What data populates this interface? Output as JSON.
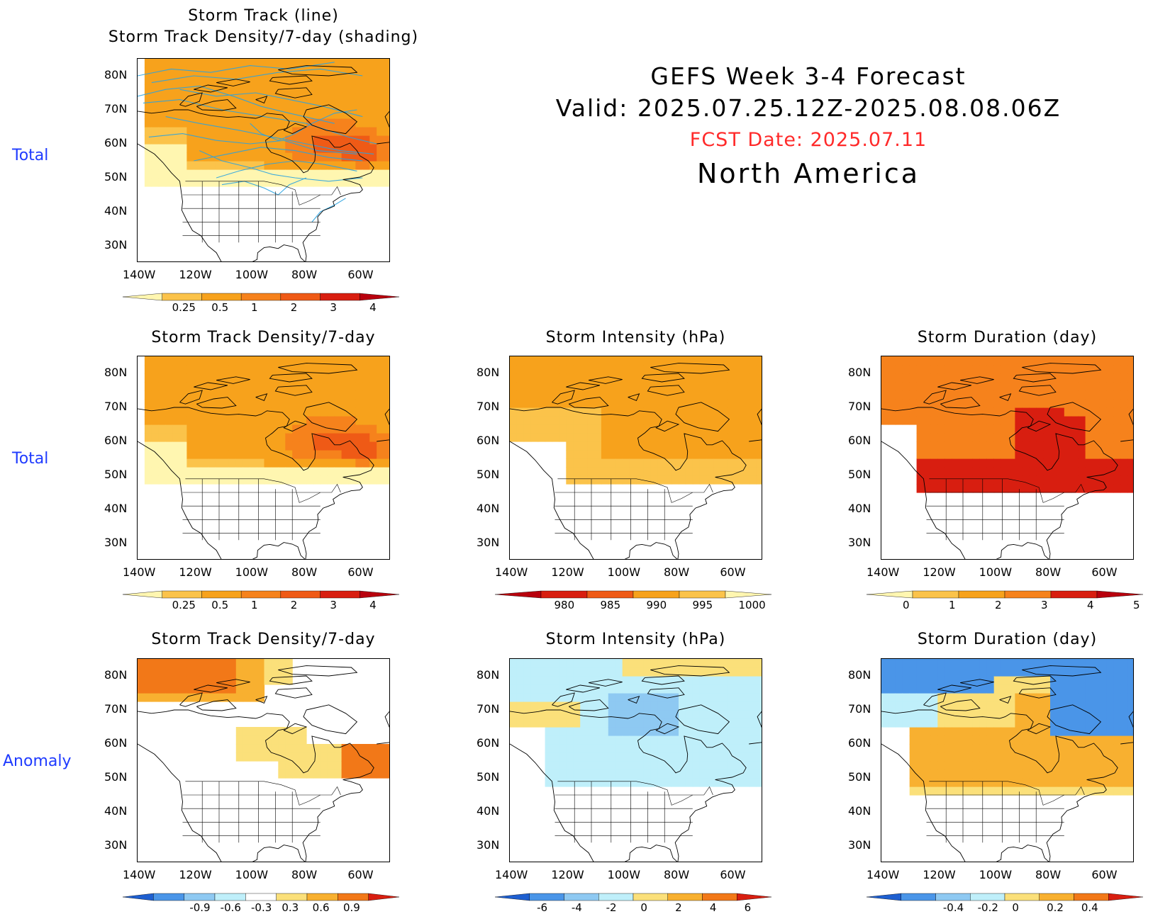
{
  "header": {
    "title_line1": "GEFS Week 3-4 Forecast",
    "title_line2": "Valid: 2025.07.25.12Z-2025.08.08.06Z",
    "fcst_date": "FCST Date: 2025.07.11",
    "region": "North America"
  },
  "row_labels": [
    "Total",
    "Total",
    "Anomaly"
  ],
  "axes": {
    "lat_ticks": [
      "80N",
      "70N",
      "60N",
      "50N",
      "40N",
      "30N"
    ],
    "lon_ticks": [
      "140W",
      "120W",
      "100W",
      "80W",
      "60W"
    ]
  },
  "panels": [
    {
      "id": "track-lines",
      "title": [
        "Storm Track (line)",
        "Storm Track Density/7-day (shading)"
      ],
      "field": "density_total",
      "show_tracks": true,
      "colorbar": {
        "labels": [
          "0.25",
          "0.5",
          "1",
          "2",
          "3",
          "4"
        ],
        "colors": [
          "#fff6b0",
          "#fbc34a",
          "#f7a21c",
          "#f6821c",
          "#ef5a16",
          "#d81e10",
          "#b8000d"
        ]
      }
    },
    {
      "id": "density-total",
      "title": [
        "Storm Track Density/7-day"
      ],
      "field": "density_total",
      "show_tracks": false,
      "colorbar": {
        "labels": [
          "0.25",
          "0.5",
          "1",
          "2",
          "3",
          "4"
        ],
        "colors": [
          "#fff6b0",
          "#fbc34a",
          "#f7a21c",
          "#f6821c",
          "#ef5a16",
          "#d81e10",
          "#b8000d"
        ]
      }
    },
    {
      "id": "intensity-total",
      "title": [
        "Storm Intensity (hPa)"
      ],
      "field": "intensity_total",
      "show_tracks": false,
      "colorbar": {
        "labels": [
          "980",
          "985",
          "990",
          "995",
          "1000"
        ],
        "colors": [
          "#b8000d",
          "#d81e10",
          "#ef5a16",
          "#f7a21c",
          "#fbc34a",
          "#fff6b0"
        ]
      }
    },
    {
      "id": "duration-total",
      "title": [
        "Storm Duration (day)"
      ],
      "field": "duration_total",
      "show_tracks": false,
      "colorbar": {
        "labels": [
          "0",
          "1",
          "2",
          "3",
          "4",
          "5"
        ],
        "colors": [
          "#fff6b0",
          "#fbc34a",
          "#f7a21c",
          "#f6821c",
          "#d81e10",
          "#b8000d"
        ]
      }
    },
    {
      "id": "density-anom",
      "title": [
        "Storm Track Density/7-day"
      ],
      "field": "density_anom",
      "show_tracks": false,
      "colorbar": {
        "labels": [
          "-0.9",
          "-0.6",
          "-0.3",
          "0.3",
          "0.6",
          "0.9"
        ],
        "colors": [
          "#1e5fd0",
          "#4a95e8",
          "#8ec9f2",
          "#bfeffa",
          "#ffffff",
          "#fbe07a",
          "#f8b030",
          "#f27818",
          "#d81e10"
        ]
      }
    },
    {
      "id": "intensity-anom",
      "title": [
        "Storm Intensity (hPa)"
      ],
      "field": "intensity_anom",
      "show_tracks": false,
      "colorbar": {
        "labels": [
          "-6",
          "-4",
          "-2",
          "0",
          "2",
          "4",
          "6"
        ],
        "colors": [
          "#1e5fd0",
          "#4a95e8",
          "#8ec9f2",
          "#bfeffa",
          "#fbe07a",
          "#f8b030",
          "#f27818",
          "#d81e10"
        ]
      }
    },
    {
      "id": "duration-anom",
      "title": [
        "Storm Duration (day)"
      ],
      "field": "duration_anom",
      "show_tracks": false,
      "colorbar": {
        "labels": [
          "-0.4",
          "-0.2",
          "0",
          "0.2",
          "0.4"
        ],
        "colors": [
          "#1e5fd0",
          "#4a95e8",
          "#8ec9f2",
          "#bfeffa",
          "#fbe07a",
          "#f8b030",
          "#f27818",
          "#d81e10"
        ]
      }
    }
  ]
}
